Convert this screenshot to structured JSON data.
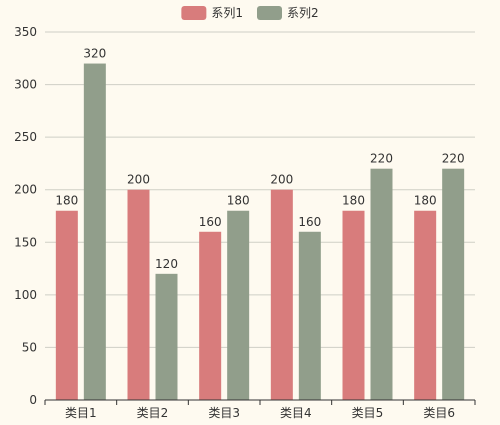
{
  "chart_data": {
    "type": "bar",
    "categories": [
      "类目1",
      "类目2",
      "类目3",
      "类目4",
      "类目5",
      "类目6"
    ],
    "series": [
      {
        "name": "系列1",
        "values": [
          180,
          200,
          160,
          200,
          180,
          180
        ],
        "color": "#d87c7c"
      },
      {
        "name": "系列2",
        "values": [
          320,
          120,
          180,
          160,
          220,
          220
        ],
        "color": "#919e8b"
      }
    ],
    "y_ticks": [
      0,
      50,
      100,
      150,
      200,
      250,
      300,
      350
    ],
    "ylim": [
      0,
      350
    ],
    "grid": true,
    "legend_position": "top-center",
    "data_labels": true,
    "background_color": "#fefaf0"
  }
}
